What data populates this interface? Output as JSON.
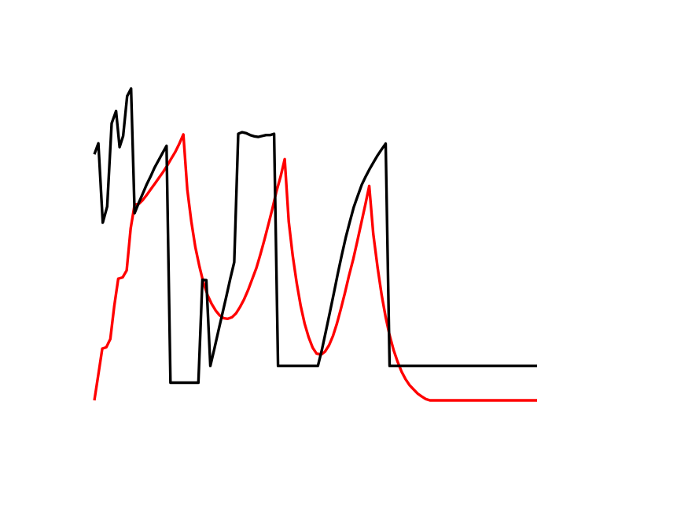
{
  "chart_data": {
    "type": "line",
    "title": "",
    "xlabel": "",
    "ylabel": "",
    "axes_visible": false,
    "grid": false,
    "legend": "none",
    "xlim": [
      0,
      100
    ],
    "ylim": [
      0,
      100
    ],
    "series": [
      {
        "color": "#ff0000",
        "x": [
          0,
          0.9,
          1.8,
          2.7,
          3.6,
          4.5,
          5.4,
          6.4,
          7.3,
          8.2,
          9.1,
          10.0,
          10.9,
          11.9,
          12.8,
          13.7,
          14.6,
          15.5,
          16.4,
          17.3,
          18.3,
          19.2,
          20.1,
          21.0,
          21.9,
          22.8,
          23.7,
          24.6,
          25.6,
          26.5,
          27.4,
          28.3,
          29.2,
          30.1,
          31.1,
          32.0,
          32.9,
          33.8,
          34.7,
          35.6,
          36.6,
          37.5,
          38.4,
          39.3,
          40.2,
          41.1,
          42.1,
          43.0,
          43.9,
          44.8,
          45.7,
          46.6,
          47.5,
          48.4,
          49.3,
          50.2,
          51.2,
          52.1,
          53.0,
          53.9,
          54.8,
          55.7,
          56.6,
          57.5,
          58.5,
          59.4,
          60.3,
          61.2,
          62.1,
          63.0,
          64.0,
          64.9,
          65.8,
          66.7,
          67.6,
          68.5,
          69.4,
          70.3,
          71.2,
          72.1,
          73.0,
          74.0,
          74.9,
          75.8,
          76.7,
          77.6,
          78.5,
          79.5,
          80.4,
          81.3,
          82.2,
          83.1,
          84.0,
          84.9,
          85.8,
          86.8,
          87.7,
          88.6,
          89.5,
          90.4,
          91.3,
          92.2,
          93.2,
          94.1,
          95.0,
          95.9,
          96.8,
          97.7,
          98.6,
          100
        ],
        "y": [
          0,
          8.2,
          16.4,
          16.8,
          19.4,
          29.8,
          38.5,
          38.9,
          41.1,
          54.4,
          61.9,
          62.1,
          63.3,
          65.1,
          66.9,
          68.6,
          70.4,
          72.2,
          74.1,
          76.3,
          78.6,
          81.2,
          84.1,
          66.7,
          56.6,
          48.5,
          42.6,
          37.4,
          33.2,
          30.5,
          28.4,
          26.9,
          26.0,
          25.8,
          26.3,
          27.5,
          29.5,
          31.9,
          34.8,
          38.1,
          41.9,
          46.1,
          50.7,
          55.6,
          60.5,
          65.9,
          70.9,
          76.3,
          56.6,
          45.9,
          37.2,
          29.9,
          24.3,
          20.0,
          16.7,
          14.8,
          14.5,
          15.4,
          17.4,
          20.4,
          24.3,
          29.0,
          34.0,
          39.3,
          44.8,
          50.3,
          56.1,
          61.9,
          67.8,
          52.7,
          41.9,
          33.3,
          26.3,
          20.6,
          15.9,
          12.2,
          9.1,
          6.7,
          4.8,
          3.5,
          2.2,
          1.2,
          0.4,
          0,
          0,
          0,
          0,
          0,
          0,
          0,
          0,
          0,
          0,
          0,
          0,
          0,
          0,
          0,
          0,
          0,
          0,
          0,
          0,
          0,
          0,
          0,
          0,
          0,
          0,
          0
        ]
      },
      {
        "color": "#000000",
        "x": [
          0,
          0.9,
          1.9,
          2.9,
          3.9,
          4.9,
          5.7,
          6.5,
          7.4,
          8.3,
          9.1,
          10.0,
          10.9,
          11.8,
          12.7,
          13.6,
          14.5,
          15.4,
          16.3,
          17.2,
          18.1,
          19.0,
          19.9,
          20.8,
          21.7,
          22.6,
          23.5,
          24.4,
          25.3,
          26.2,
          27.1,
          28.0,
          28.9,
          29.8,
          30.7,
          31.6,
          32.5,
          33.4,
          34.3,
          35.2,
          36.1,
          37.0,
          37.9,
          38.8,
          39.7,
          40.6,
          41.5,
          42.4,
          43.3,
          44.2,
          45.1,
          46.0,
          46.9,
          47.8,
          48.7,
          49.6,
          50.5,
          51.4,
          52.3,
          53.2,
          54.1,
          55.0,
          55.9,
          56.8,
          57.7,
          58.6,
          59.5,
          60.4,
          61.3,
          62.2,
          63.1,
          64.0,
          64.9,
          65.8,
          66.7,
          67.6,
          68.5,
          69.4,
          70.3,
          71.2,
          72.1,
          73.0,
          73.9,
          74.8,
          75.7,
          76.6,
          77.5,
          78.4,
          79.3,
          80.2,
          81.1,
          82.0,
          82.9,
          83.8,
          84.7,
          85.6,
          86.5,
          87.4,
          88.3,
          89.2,
          90.1,
          91.0,
          91.9,
          92.8,
          93.7,
          94.6,
          95.5,
          96.4,
          97.3,
          98.2,
          100
        ],
        "y": [
          77.8,
          81.3,
          56.2,
          61.3,
          87.6,
          91.5,
          80.1,
          83.6,
          96.2,
          98.6,
          59.2,
          62.4,
          65.3,
          68.2,
          70.8,
          73.6,
          75.9,
          78.2,
          80.5,
          5.6,
          5.6,
          5.6,
          5.6,
          5.6,
          5.6,
          5.6,
          5.6,
          38.1,
          38.0,
          10.9,
          16.3,
          21.8,
          27.3,
          32.8,
          38.4,
          43.7,
          84.3,
          84.8,
          84.5,
          83.9,
          83.5,
          83.3,
          83.6,
          83.9,
          83.9,
          84.3,
          10.9,
          10.9,
          10.9,
          10.9,
          10.9,
          10.9,
          10.9,
          10.9,
          10.9,
          10.9,
          10.9,
          16.0,
          21.8,
          27.8,
          33.9,
          40.2,
          46.0,
          51.6,
          56.5,
          61.1,
          64.7,
          68.2,
          70.8,
          73.2,
          75.4,
          77.5,
          79.4,
          81.2,
          10.9,
          10.9,
          10.9,
          10.9,
          10.9,
          10.9,
          10.9,
          10.9,
          10.9,
          10.9,
          10.9,
          10.9,
          10.9,
          10.9,
          10.9,
          10.9,
          10.9,
          10.9,
          10.9,
          10.9,
          10.9,
          10.9,
          10.9,
          10.9,
          10.9,
          10.9,
          10.9,
          10.9,
          10.9,
          10.9,
          10.9,
          10.9,
          10.9,
          10.9,
          10.9,
          10.9,
          10.9
        ]
      }
    ]
  }
}
